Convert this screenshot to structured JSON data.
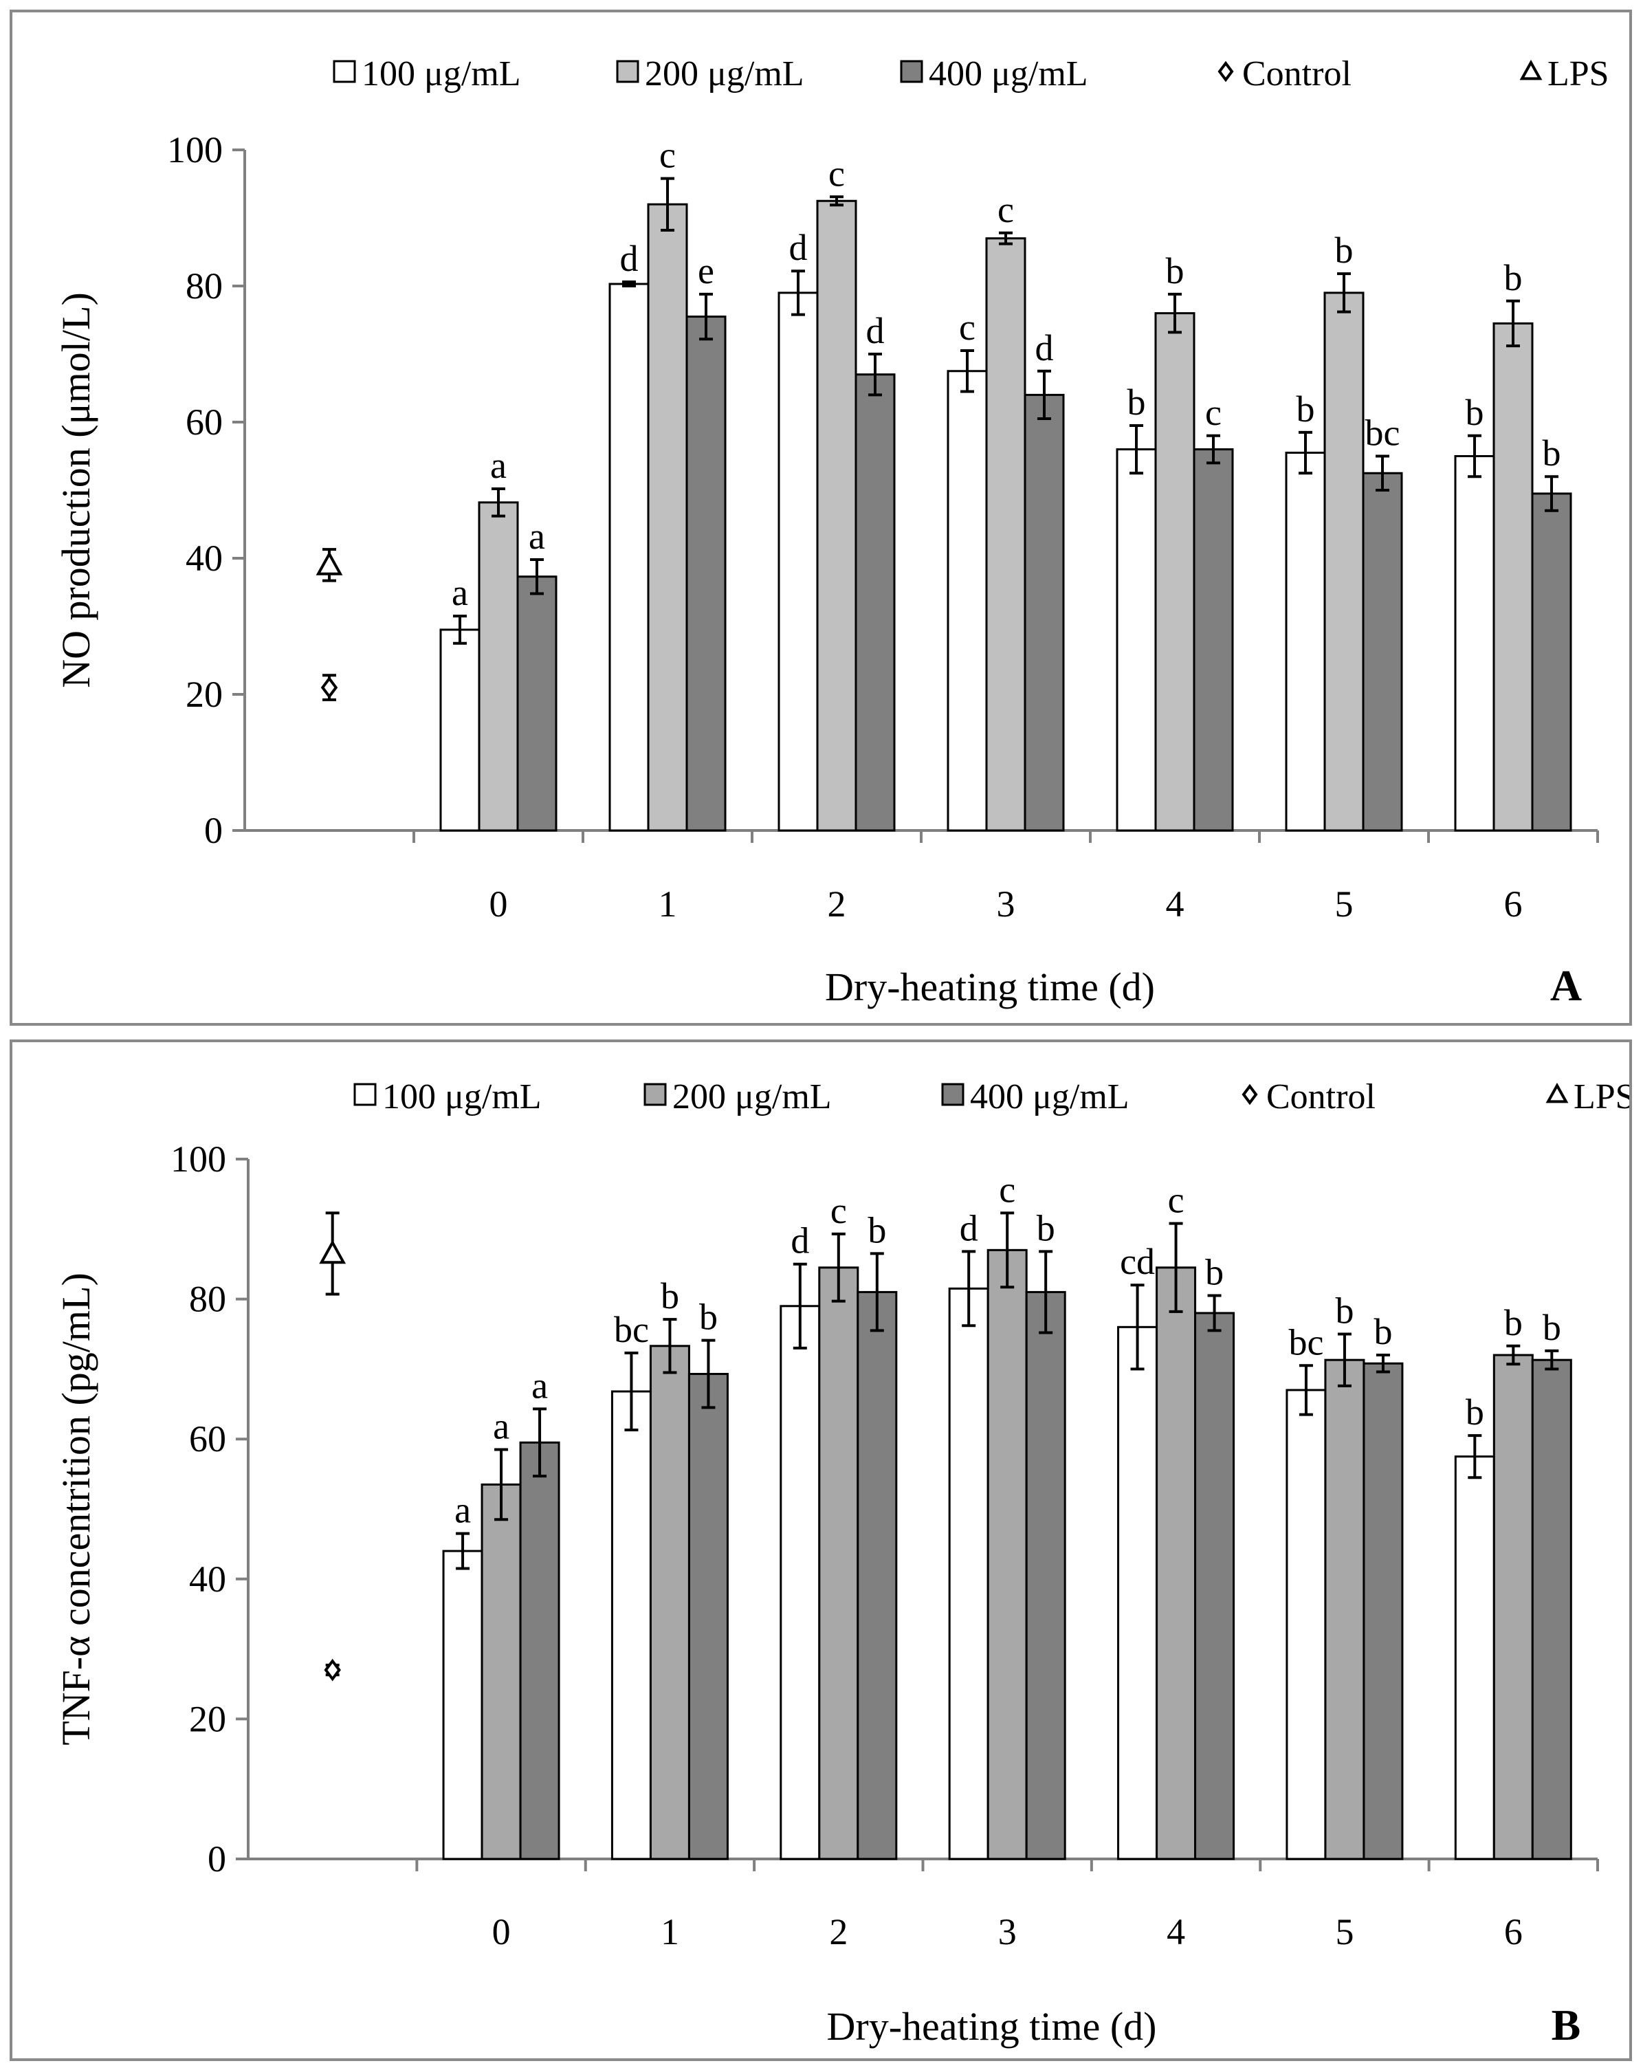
{
  "chart_data": [
    {
      "type": "bar",
      "panel_label": "A",
      "ylabel": "NO production (μmol/L)",
      "xlabel": "Dry-heating time (d)",
      "ylim": [
        0,
        100
      ],
      "yticks": [
        "0",
        "20",
        "40",
        "60",
        "80",
        "100"
      ],
      "categories": [
        "0",
        "1",
        "2",
        "3",
        "4",
        "5",
        "6"
      ],
      "series": [
        {
          "name": "100 μg/mL",
          "color": "#ffffff",
          "values": [
            29.5,
            80.3,
            79.0,
            67.5,
            56.0,
            55.5,
            55.0
          ],
          "errors": [
            2.0,
            0.3,
            3.2,
            3.0,
            3.5,
            3.0,
            3.0
          ],
          "letters": [
            "a",
            "d",
            "d",
            "c",
            "b",
            "b",
            "b"
          ]
        },
        {
          "name": "200 μg/mL",
          "color": "#c0c0c0",
          "values": [
            48.2,
            92.0,
            92.5,
            87.0,
            76.0,
            79.0,
            74.5
          ],
          "errors": [
            2.0,
            3.8,
            0.6,
            0.8,
            2.8,
            2.8,
            3.3
          ],
          "letters": [
            "a",
            "c",
            "c",
            "c",
            "b",
            "b",
            "b"
          ]
        },
        {
          "name": "400 μg/mL",
          "color": "#808080",
          "values": [
            37.3,
            75.5,
            67.0,
            64.0,
            56.0,
            52.5,
            49.5
          ],
          "errors": [
            2.5,
            3.3,
            3.0,
            3.5,
            2.0,
            2.5,
            2.5
          ],
          "letters": [
            "a",
            "e",
            "d",
            "d",
            "c",
            "bc",
            "b"
          ]
        }
      ],
      "controls": [
        {
          "name": "Control",
          "marker": "diamond",
          "value": 21.0,
          "error": 1.8
        },
        {
          "name": "LPS",
          "marker": "triangle",
          "value": 39.0,
          "error": 2.3
        }
      ]
    },
    {
      "type": "bar",
      "panel_label": "B",
      "ylabel": "TNF-α concentrition (pg/mL)",
      "xlabel": "Dry-heating time (d)",
      "ylim": [
        0,
        100
      ],
      "yticks": [
        "0",
        "20",
        "40",
        "60",
        "80",
        "100"
      ],
      "categories": [
        "0",
        "1",
        "2",
        "3",
        "4",
        "5",
        "6"
      ],
      "series": [
        {
          "name": "100 μg/mL",
          "color": "#ffffff",
          "values": [
            44.0,
            66.8,
            79.0,
            81.5,
            76.0,
            67.0,
            57.5
          ],
          "errors": [
            2.5,
            5.5,
            6.0,
            5.3,
            6.0,
            3.5,
            3.0
          ],
          "letters": [
            "a",
            "bc",
            "d",
            "d",
            "cd",
            "bc",
            "b"
          ]
        },
        {
          "name": "200 μg/mL",
          "color": "#a8a8a8",
          "values": [
            53.5,
            73.3,
            84.5,
            87.0,
            84.5,
            71.3,
            72.0
          ],
          "errors": [
            5.0,
            3.8,
            4.8,
            5.3,
            6.3,
            3.7,
            1.3
          ],
          "letters": [
            "a",
            "b",
            "c",
            "c",
            "c",
            "b",
            "b"
          ]
        },
        {
          "name": "400 μg/mL",
          "color": "#808080",
          "values": [
            59.5,
            69.3,
            81.0,
            81.0,
            78.0,
            70.8,
            71.3
          ],
          "errors": [
            4.8,
            4.8,
            5.5,
            5.8,
            2.5,
            1.2,
            1.3
          ],
          "letters": [
            "a",
            "b",
            "b",
            "b",
            "b",
            "b",
            "b"
          ]
        }
      ],
      "controls": [
        {
          "name": "Control",
          "marker": "diamond",
          "value": 27.0,
          "error": 0.7
        },
        {
          "name": "LPS",
          "marker": "triangle",
          "value": 86.5,
          "error": 5.8
        }
      ]
    }
  ]
}
